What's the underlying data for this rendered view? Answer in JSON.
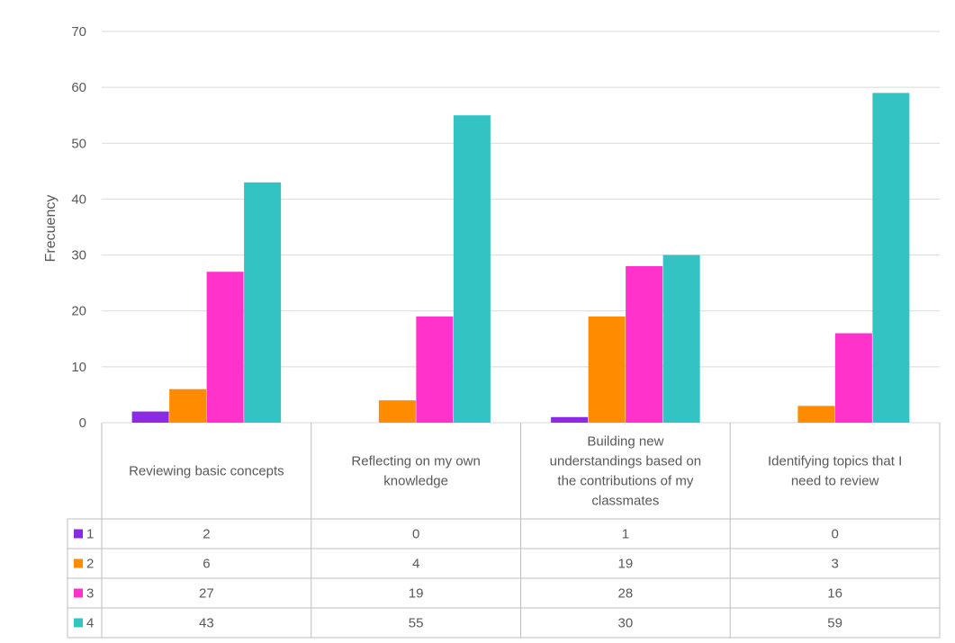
{
  "chart_data": {
    "type": "bar",
    "ylabel": "Frecuency",
    "ylim": [
      0,
      70
    ],
    "yticks": [
      0,
      10,
      20,
      30,
      40,
      50,
      60,
      70
    ],
    "grid": true,
    "legend_placement": "data-table-left",
    "categories": [
      [
        "Reviewing basic concepts"
      ],
      [
        "Reflecting on my own",
        "knowledge"
      ],
      [
        "Building new",
        "understandings based on",
        "the contributions of my",
        "classmates"
      ],
      [
        "Identifying topics that I",
        "need to review"
      ]
    ],
    "series": [
      {
        "name": "1",
        "color": "#8a2be2",
        "values": [
          2,
          0,
          1,
          0
        ]
      },
      {
        "name": "2",
        "color": "#ff8c00",
        "values": [
          6,
          4,
          19,
          3
        ]
      },
      {
        "name": "3",
        "color": "#ff33cc",
        "values": [
          27,
          19,
          28,
          16
        ]
      },
      {
        "name": "4",
        "color": "#33c3c3",
        "values": [
          43,
          55,
          30,
          59
        ]
      }
    ]
  }
}
